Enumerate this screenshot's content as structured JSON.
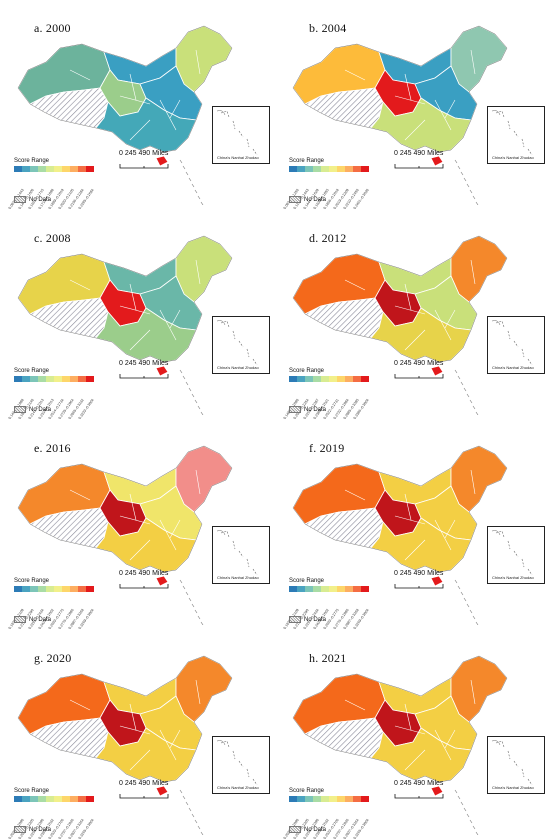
{
  "panels": [
    {
      "title": "a. 2000",
      "scale": "0  245 490 Miles",
      "inset": "China's Nanhai Zhudao",
      "score": "Score Range",
      "nodata": "No Data",
      "ticks": [
        "0.0871–0.1443",
        "0.1444–0.1600",
        "0.1601–0.1715",
        "0.1716–0.1898",
        "0.1899–0.2019",
        "0.2020–0.2105",
        "0.2106–0.2284",
        "0.2285–0.2684"
      ],
      "colors": {
        "west": "#6cb39c",
        "tibet": "#ffffff",
        "northeast": "#c9e07a",
        "east": "#3a9fc2",
        "center": "#9bcd8b",
        "south": "#44a8b8",
        "hainan": "#e31a1c"
      }
    },
    {
      "title": "b. 2004",
      "scale": "0  245 490 Miles",
      "inset": "China's Nanhai Zhudao",
      "score": "Score Range",
      "nodata": "No Data",
      "ticks": [
        "0.0874–0.1250",
        "0.1251–0.1443",
        "0.1444–0.1629",
        "0.1630–0.1855",
        "0.1856–0.2018",
        "0.2019–0.2209",
        "0.2210–0.2450",
        "0.2451–0.3030"
      ],
      "colors": {
        "west": "#fdbb3a",
        "tibet": "#ffffff",
        "northeast": "#8fc7b0",
        "east": "#3a9fc2",
        "center": "#e31a1c",
        "south": "#c9e07a",
        "hainan": "#e31a1c"
      }
    },
    {
      "title": "c. 2008",
      "scale": "0  245 490 Miles",
      "inset": "China's Nanhai Zhudao",
      "score": "Score Range",
      "nodata": "No Data",
      "ticks": [
        "0.1464–0.1988",
        "0.1989–0.2140",
        "0.2141–0.2313",
        "0.2314–0.2513",
        "0.2514–0.2734",
        "0.2735–0.2964",
        "0.2965–0.3232",
        "0.3233–0.3804"
      ],
      "colors": {
        "west": "#e7d34a",
        "tibet": "#ffffff",
        "northeast": "#c9e07a",
        "east": "#6ab7a8",
        "center": "#e31a1c",
        "south": "#9bcd8b",
        "hainan": "#e31a1c"
      }
    },
    {
      "title": "d. 2012",
      "scale": "0  245 490 Miles",
      "inset": "China's Nanhai Zhudao",
      "score": "Score Range",
      "nodata": "No Data",
      "ticks": [
        "0.1483–0.2080",
        "0.2081–0.2254",
        "0.2255–0.2387",
        "0.2388–0.2521",
        "0.2522–0.2731",
        "0.2732–0.2984",
        "0.2985–0.3385",
        "0.3386–0.3804"
      ],
      "colors": {
        "west": "#f4691b",
        "tibet": "#ffffff",
        "northeast": "#f4882b",
        "east": "#c9e07a",
        "center": "#c0151b",
        "south": "#e7d34a",
        "hainan": "#e31a1c"
      }
    },
    {
      "title": "e. 2016",
      "scale": "0  245 490 Miles",
      "inset": "China's Nanhai Zhudao",
      "score": "Score Range",
      "nodata": "No Data",
      "ticks": [
        "0.1970–0.2109",
        "0.2110–0.2290",
        "0.2291–0.2434",
        "0.2435–0.2602",
        "0.2603–0.2775",
        "0.2776–0.2986",
        "0.2987–0.3268",
        "0.3269–0.3804"
      ],
      "colors": {
        "west": "#f4882b",
        "tibet": "#ffffff",
        "northeast": "#f28e8a",
        "east": "#f0e56a",
        "center": "#c0151b",
        "south": "#f3cf44",
        "hainan": "#e31a1c"
      }
    },
    {
      "title": "f. 2019",
      "scale": "0  245 490 Miles",
      "inset": "China's Nanhai Zhudao",
      "score": "Score Range",
      "nodata": "No Data",
      "ticks": [
        "0.1970–0.2109",
        "0.2110–0.2290",
        "0.2291–0.2434",
        "0.2435–0.2602",
        "0.2603–0.2775",
        "0.2776–0.2986",
        "0.2987–0.3268",
        "0.3269–0.3804"
      ],
      "colors": {
        "west": "#f4691b",
        "tibet": "#ffffff",
        "northeast": "#f4882b",
        "east": "#f3cf44",
        "center": "#c0151b",
        "south": "#f3cf44",
        "hainan": "#e31a1c"
      }
    },
    {
      "title": "g. 2020",
      "scale": "0  245 490 Miles",
      "inset": "China's Nanhai Zhudao",
      "score": "Score Range",
      "nodata": "No Data",
      "ticks": [
        "0.2027–0.2090",
        "0.2091–0.2205",
        "0.2206–0.2390",
        "0.2391–0.2532",
        "0.2533–0.2706",
        "0.2707–0.2936",
        "0.2937–0.3264",
        "0.3265–0.3804"
      ],
      "colors": {
        "west": "#f4691b",
        "tibet": "#ffffff",
        "northeast": "#f4882b",
        "east": "#f3cf44",
        "center": "#c0151b",
        "south": "#f3cf44",
        "hainan": "#e31a1c"
      }
    },
    {
      "title": "h. 2021",
      "scale": "0  245 490 Miles",
      "inset": "China's Nanhai Zhudao",
      "score": "Score Range",
      "nodata": "No Data",
      "ticks": [
        "0.2027–0.2090",
        "0.2091–0.2205",
        "0.2206–0.2390",
        "0.2391–0.2532",
        "0.2533–0.2706",
        "0.2707–0.2936",
        "0.2937–0.3264",
        "0.3265–0.3804"
      ],
      "colors": {
        "west": "#f4691b",
        "tibet": "#ffffff",
        "northeast": "#f4882b",
        "east": "#f3cf44",
        "center": "#c0151b",
        "south": "#f3cf44",
        "hainan": "#e31a1c"
      }
    }
  ],
  "legend_colors": [
    "#2c7bb6",
    "#4aa3c0",
    "#7cc5b8",
    "#a9dca5",
    "#d8ec92",
    "#f2f08a",
    "#fdd66a",
    "#fdae61",
    "#f46d43",
    "#e31a1c"
  ]
}
